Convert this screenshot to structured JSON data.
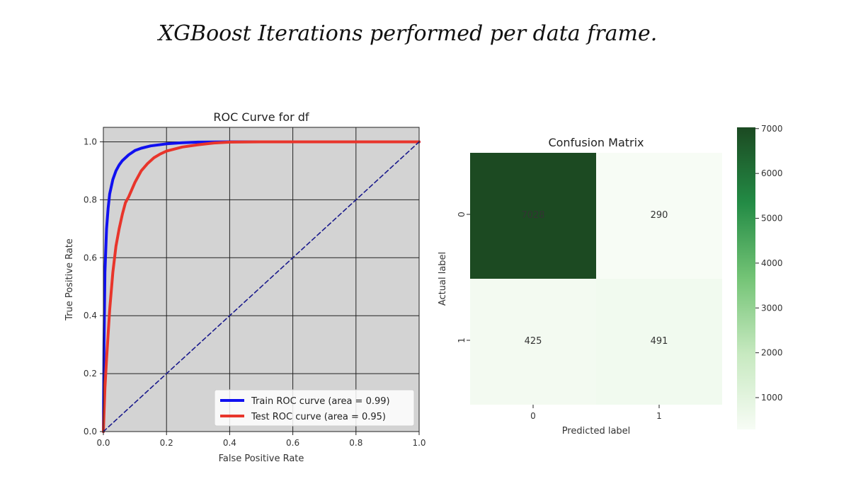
{
  "page": {
    "caption": "XGBoost Iterations performed per data frame."
  },
  "chart_data": [
    {
      "type": "line",
      "title": "ROC Curve for df",
      "xlabel": "False Positive Rate",
      "ylabel": "True Positive Rate",
      "xlim": [
        0.0,
        1.0
      ],
      "ylim": [
        0.0,
        1.05
      ],
      "x_ticks": [
        "0.0",
        "0.2",
        "0.4",
        "0.6",
        "0.8",
        "1.0"
      ],
      "y_ticks": [
        "0.0",
        "0.2",
        "0.4",
        "0.6",
        "0.8",
        "1.0"
      ],
      "grid": true,
      "legend_position": "lower-right",
      "series": [
        {
          "name": "Train ROC curve (area = 0.99)",
          "color": "#1010f0",
          "x": [
            0.0,
            0.002,
            0.005,
            0.01,
            0.015,
            0.02,
            0.03,
            0.04,
            0.05,
            0.06,
            0.08,
            0.1,
            0.12,
            0.15,
            0.2,
            0.25,
            0.3,
            0.4,
            0.5,
            0.7,
            1.0
          ],
          "y": [
            0.0,
            0.3,
            0.55,
            0.7,
            0.77,
            0.82,
            0.87,
            0.9,
            0.92,
            0.935,
            0.955,
            0.97,
            0.978,
            0.986,
            0.993,
            0.997,
            0.999,
            1.0,
            1.0,
            1.0,
            1.0
          ]
        },
        {
          "name": "Test ROC curve (area = 0.95)",
          "color": "#e8352b",
          "x": [
            0.0,
            0.005,
            0.01,
            0.02,
            0.03,
            0.04,
            0.05,
            0.06,
            0.07,
            0.08,
            0.1,
            0.12,
            0.14,
            0.16,
            0.18,
            0.2,
            0.25,
            0.3,
            0.35,
            0.4,
            0.5,
            0.7,
            1.0
          ],
          "y": [
            0.0,
            0.15,
            0.25,
            0.42,
            0.55,
            0.64,
            0.7,
            0.75,
            0.79,
            0.81,
            0.86,
            0.9,
            0.925,
            0.945,
            0.958,
            0.968,
            0.982,
            0.99,
            0.996,
            0.999,
            1.0,
            1.0,
            1.0
          ]
        },
        {
          "name": "",
          "color": "#1a1a8c",
          "style": "dashed",
          "x": [
            0.0,
            1.0
          ],
          "y": [
            0.0,
            1.0
          ]
        }
      ]
    },
    {
      "type": "heatmap",
      "title": "Confusion Matrix",
      "xlabel": "Predicted label",
      "ylabel": "Actual label",
      "x_categories": [
        "0",
        "1"
      ],
      "y_categories": [
        "0",
        "1"
      ],
      "values": [
        [
          7028,
          290
        ],
        [
          425,
          491
        ]
      ],
      "colormap": "Greens",
      "colorbar_range": [
        290,
        7028
      ],
      "colorbar_ticks": [
        "1000",
        "2000",
        "3000",
        "4000",
        "5000",
        "6000",
        "7000"
      ],
      "colorbar_tick_values": [
        1000,
        2000,
        3000,
        4000,
        5000,
        6000,
        7000
      ]
    }
  ]
}
